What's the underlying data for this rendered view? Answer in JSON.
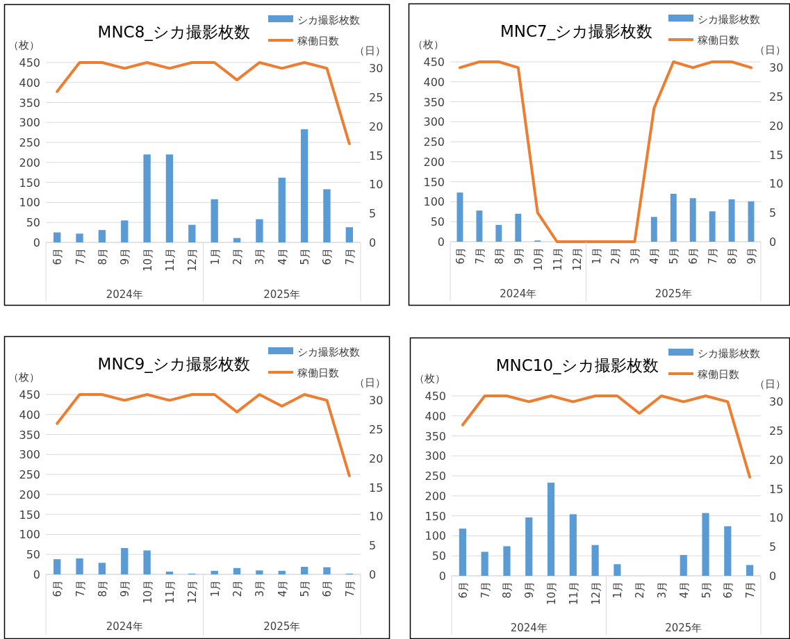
{
  "chart_data": [
    {
      "type": "bar",
      "title": "MNC8_シカ撮影枚数",
      "ylabel": "（枚）",
      "y2label": "（日）",
      "legend": "top right",
      "grid": "y",
      "categories": [
        "6月",
        "7月",
        "8月",
        "9月",
        "10月",
        "11月",
        "12月",
        "1月",
        "2月",
        "3月",
        "4月",
        "5月",
        "6月",
        "7月"
      ],
      "annotations": [
        "2024年",
        "2025年"
      ],
      "ylim": [
        0,
        450
      ],
      "yticks": [
        0,
        50,
        100,
        150,
        200,
        250,
        300,
        350,
        400,
        450
      ],
      "y2lim": [
        0,
        31
      ],
      "y2ticks": [
        0,
        5,
        10,
        15,
        20,
        25,
        30
      ],
      "series": [
        {
          "name": "シカ撮影枚数",
          "color": "#5b9bd5",
          "values": [
            25,
            22,
            31,
            55,
            220,
            220,
            44,
            108,
            11,
            58,
            162,
            283,
            133,
            38
          ]
        },
        {
          "name": "稼働日数",
          "type": "line",
          "axis": "y2",
          "color": "#ed7d31",
          "values": [
            26,
            31,
            31,
            30,
            31,
            30,
            31,
            31,
            28,
            31,
            30,
            31,
            30,
            17
          ]
        }
      ]
    },
    {
      "type": "bar",
      "title": "MNC7_シカ撮影枚数",
      "ylabel": "（枚）",
      "y2label": "（日）",
      "legend": "top right",
      "grid": "y",
      "categories": [
        "6月",
        "7月",
        "8月",
        "9月",
        "10月",
        "11月",
        "12月",
        "1月",
        "2月",
        "3月",
        "4月",
        "5月",
        "6月",
        "7月",
        "8月",
        "9月"
      ],
      "annotations": [
        "2024年",
        "2025年"
      ],
      "ylim": [
        0,
        450
      ],
      "yticks": [
        0,
        50,
        100,
        150,
        200,
        250,
        300,
        350,
        400,
        450
      ],
      "y2lim": [
        0,
        31
      ],
      "y2ticks": [
        0,
        5,
        10,
        15,
        20,
        25,
        30
      ],
      "series": [
        {
          "name": "シカ撮影枚数",
          "color": "#5b9bd5",
          "values": [
            123,
            78,
            42,
            70,
            3,
            0,
            0,
            0,
            0,
            0,
            62,
            120,
            109,
            76,
            106,
            101
          ]
        },
        {
          "name": "稼働日数",
          "type": "line",
          "axis": "y2",
          "color": "#ed7d31",
          "values": [
            30,
            31,
            31,
            30,
            5,
            0,
            0,
            0,
            0,
            0,
            23,
            31,
            30,
            31,
            31,
            30
          ]
        }
      ]
    },
    {
      "type": "bar",
      "title": "MNC9_シカ撮影枚数",
      "ylabel": "（枚）",
      "y2label": "（日）",
      "legend": "top right",
      "grid": "y",
      "categories": [
        "6月",
        "7月",
        "8月",
        "9月",
        "10月",
        "11月",
        "12月",
        "1月",
        "2月",
        "3月",
        "4月",
        "5月",
        "6月",
        "7月"
      ],
      "annotations": [
        "2024年",
        "2025年"
      ],
      "ylim": [
        0,
        450
      ],
      "yticks": [
        0,
        50,
        100,
        150,
        200,
        250,
        300,
        350,
        400,
        450
      ],
      "y2lim": [
        0,
        31
      ],
      "y2ticks": [
        0,
        5,
        10,
        15,
        20,
        25,
        30
      ],
      "series": [
        {
          "name": "シカ撮影枚数",
          "color": "#5b9bd5",
          "values": [
            38,
            40,
            29,
            66,
            60,
            7,
            2,
            9,
            16,
            10,
            9,
            19,
            18,
            2
          ]
        },
        {
          "name": "稼働日数",
          "type": "line",
          "axis": "y2",
          "color": "#ed7d31",
          "values": [
            26,
            31,
            31,
            30,
            31,
            30,
            31,
            31,
            28,
            31,
            29,
            31,
            30,
            17
          ]
        }
      ]
    },
    {
      "type": "bar",
      "title": "MNC10_シカ撮影枚数",
      "ylabel": "（枚）",
      "y2label": "（日）",
      "legend": "top right",
      "grid": "y",
      "categories": [
        "6月",
        "7月",
        "8月",
        "9月",
        "10月",
        "11月",
        "12月",
        "1月",
        "2月",
        "3月",
        "4月",
        "5月",
        "6月",
        "7月"
      ],
      "annotations": [
        "2024年",
        "2025年"
      ],
      "ylim": [
        0,
        450
      ],
      "yticks": [
        0,
        50,
        100,
        150,
        200,
        250,
        300,
        350,
        400,
        450
      ],
      "y2lim": [
        0,
        31
      ],
      "y2ticks": [
        0,
        5,
        10,
        15,
        20,
        25,
        30
      ],
      "series": [
        {
          "name": "シカ撮影枚数",
          "color": "#5b9bd5",
          "values": [
            118,
            60,
            74,
            146,
            233,
            154,
            77,
            29,
            0,
            0,
            52,
            157,
            124,
            27
          ]
        },
        {
          "name": "稼働日数",
          "type": "line",
          "axis": "y2",
          "color": "#ed7d31",
          "values": [
            26,
            31,
            31,
            30,
            31,
            30,
            31,
            31,
            28,
            31,
            30,
            31,
            30,
            17
          ]
        }
      ]
    }
  ]
}
